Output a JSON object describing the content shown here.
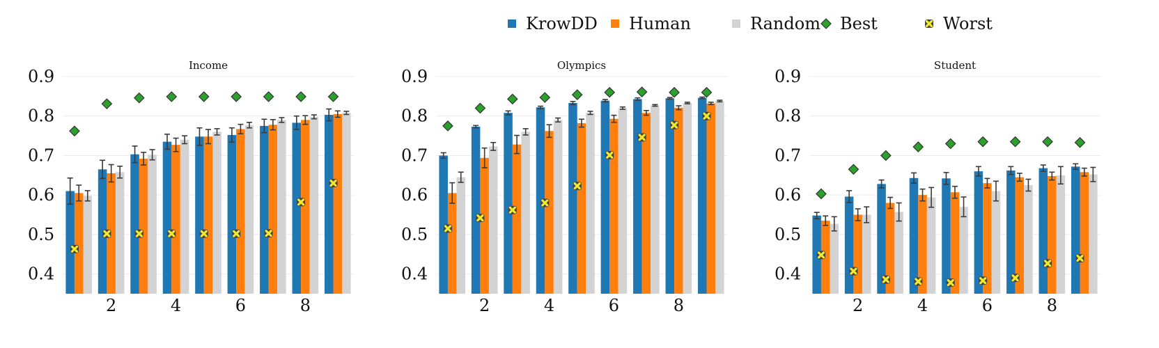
{
  "legend": [
    {
      "label": "KrowDD",
      "marker": "square",
      "color": "#1f77b4"
    },
    {
      "label": "Human",
      "marker": "square",
      "color": "#ff7f0e"
    },
    {
      "label": "Random",
      "marker": "square",
      "color": "#d3d3d3"
    },
    {
      "label": "Best",
      "marker": "diamond",
      "color": "#2ca02c"
    },
    {
      "label": "Worst",
      "marker": "x",
      "color": "#f2e82c"
    }
  ],
  "chart_data": [
    {
      "type": "bar",
      "title": "Income",
      "x": [
        1,
        2,
        3,
        4,
        5,
        6,
        7,
        8,
        9
      ],
      "x_ticks": [
        2,
        4,
        6,
        8
      ],
      "ylim": [
        0.35,
        0.9
      ],
      "y_ticks": [
        0.4,
        0.5,
        0.6,
        0.7,
        0.8,
        0.9
      ],
      "grid": true,
      "legend_position": "top",
      "series": [
        {
          "name": "KrowDD",
          "type": "bar",
          "color": "#1f77b4",
          "values": [
            0.61,
            0.665,
            0.703,
            0.735,
            0.748,
            0.752,
            0.775,
            0.783,
            0.803
          ],
          "errors": [
            0.033,
            0.023,
            0.021,
            0.019,
            0.022,
            0.018,
            0.017,
            0.017,
            0.015
          ]
        },
        {
          "name": "Human",
          "type": "bar",
          "color": "#ff7f0e",
          "values": [
            0.605,
            0.655,
            0.692,
            0.727,
            0.748,
            0.767,
            0.778,
            0.79,
            0.805
          ],
          "errors": [
            0.02,
            0.022,
            0.016,
            0.017,
            0.018,
            0.012,
            0.013,
            0.011,
            0.008
          ]
        },
        {
          "name": "Random",
          "type": "bar",
          "color": "#d3d3d3",
          "values": [
            0.598,
            0.658,
            0.702,
            0.74,
            0.76,
            0.777,
            0.79,
            0.798,
            0.808
          ],
          "errors": [
            0.013,
            0.015,
            0.013,
            0.01,
            0.008,
            0.007,
            0.006,
            0.005,
            0.004
          ]
        },
        {
          "name": "Best",
          "type": "marker",
          "color": "#2ca02c",
          "values": [
            0.762,
            0.831,
            0.846,
            0.849,
            0.849,
            0.849,
            0.849,
            0.849,
            0.849
          ]
        },
        {
          "name": "Worst",
          "type": "marker",
          "color": "#f2e82c",
          "values": [
            0.463,
            0.502,
            0.502,
            0.502,
            0.502,
            0.502,
            0.503,
            0.582,
            0.63
          ]
        }
      ]
    },
    {
      "type": "bar",
      "title": "Olympics",
      "x": [
        1,
        2,
        3,
        4,
        5,
        6,
        7,
        8,
        9
      ],
      "x_ticks": [
        2,
        4,
        6,
        8
      ],
      "ylim": [
        0.35,
        0.9
      ],
      "y_ticks": [
        0.4,
        0.5,
        0.6,
        0.7,
        0.8,
        0.9
      ],
      "grid": true,
      "series": [
        {
          "name": "KrowDD",
          "type": "bar",
          "color": "#1f77b4",
          "values": [
            0.7,
            0.773,
            0.808,
            0.822,
            0.833,
            0.839,
            0.843,
            0.845,
            0.846
          ],
          "errors": [
            0.007,
            0.003,
            0.005,
            0.003,
            0.004,
            0.003,
            0.003,
            0.002,
            0.002
          ]
        },
        {
          "name": "Human",
          "type": "bar",
          "color": "#ff7f0e",
          "values": [
            0.605,
            0.694,
            0.728,
            0.762,
            0.782,
            0.793,
            0.808,
            0.821,
            0.832
          ],
          "errors": [
            0.026,
            0.025,
            0.023,
            0.016,
            0.01,
            0.009,
            0.006,
            0.005,
            0.003
          ]
        },
        {
          "name": "Random",
          "type": "bar",
          "color": "#d3d3d3",
          "values": [
            0.645,
            0.723,
            0.76,
            0.79,
            0.808,
            0.82,
            0.827,
            0.833,
            0.838
          ],
          "errors": [
            0.013,
            0.01,
            0.008,
            0.005,
            0.004,
            0.003,
            0.002,
            0.002,
            0.002
          ]
        },
        {
          "name": "Best",
          "type": "marker",
          "color": "#2ca02c",
          "values": [
            0.775,
            0.82,
            0.843,
            0.847,
            0.854,
            0.86,
            0.861,
            0.86,
            0.86
          ]
        },
        {
          "name": "Worst",
          "type": "marker",
          "color": "#f2e82c",
          "values": [
            0.515,
            0.542,
            0.562,
            0.58,
            0.623,
            0.701,
            0.746,
            0.777,
            0.8
          ]
        }
      ]
    },
    {
      "type": "bar",
      "title": "Student",
      "x": [
        1,
        2,
        3,
        4,
        5,
        6,
        7,
        8,
        9
      ],
      "x_ticks": [
        2,
        4,
        6,
        8
      ],
      "ylim": [
        0.35,
        0.9
      ],
      "y_ticks": [
        0.4,
        0.5,
        0.6,
        0.7,
        0.8,
        0.9
      ],
      "grid": true,
      "series": [
        {
          "name": "KrowDD",
          "type": "bar",
          "color": "#1f77b4",
          "values": [
            0.548,
            0.596,
            0.628,
            0.643,
            0.642,
            0.66,
            0.662,
            0.668,
            0.672
          ],
          "errors": [
            0.008,
            0.015,
            0.01,
            0.013,
            0.015,
            0.012,
            0.01,
            0.008,
            0.007
          ]
        },
        {
          "name": "Human",
          "type": "bar",
          "color": "#ff7f0e",
          "values": [
            0.535,
            0.55,
            0.58,
            0.6,
            0.607,
            0.63,
            0.645,
            0.648,
            0.658
          ],
          "errors": [
            0.012,
            0.015,
            0.014,
            0.015,
            0.015,
            0.012,
            0.01,
            0.01,
            0.01
          ]
        },
        {
          "name": "Random",
          "type": "bar",
          "color": "#d3d3d3",
          "values": [
            0.527,
            0.55,
            0.557,
            0.594,
            0.57,
            0.61,
            0.625,
            0.65,
            0.652
          ],
          "errors": [
            0.018,
            0.02,
            0.023,
            0.025,
            0.025,
            0.025,
            0.015,
            0.022,
            0.018
          ]
        },
        {
          "name": "Best",
          "type": "marker",
          "color": "#2ca02c",
          "values": [
            0.603,
            0.665,
            0.7,
            0.722,
            0.73,
            0.735,
            0.735,
            0.735,
            0.733
          ]
        },
        {
          "name": "Worst",
          "type": "marker",
          "color": "#f2e82c",
          "values": [
            0.448,
            0.407,
            0.386,
            0.381,
            0.378,
            0.383,
            0.39,
            0.427,
            0.44
          ]
        }
      ]
    }
  ]
}
